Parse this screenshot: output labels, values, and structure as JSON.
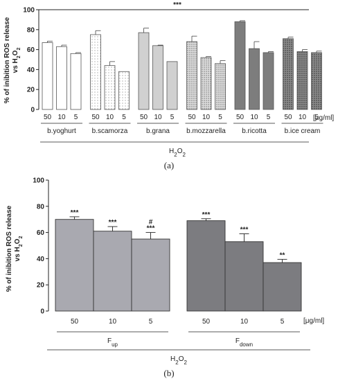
{
  "chart_data": [
    {
      "type": "bar",
      "panel_label": "(a)",
      "ylabel_main": "% of inibition ROS release",
      "ylabel_vs": "vs H",
      "ylabel_sub": "2",
      "ylabel_tail": "O",
      "ylabel_sub2": "2",
      "ylim": [
        0,
        100
      ],
      "yticks": [
        0,
        20,
        40,
        60,
        80,
        100
      ],
      "overall_significance": "***",
      "unit_label": "[μg/ml]",
      "group_axis_main": "H",
      "group_axis_sub": "2",
      "group_axis_tail": "O",
      "group_axis_sub2": "2",
      "groups": [
        {
          "name": "b.yoghurt",
          "pattern": "white",
          "doses": [
            "50",
            "10",
            "5"
          ],
          "values": [
            67,
            63,
            56
          ],
          "errors": [
            1.5,
            1.5,
            1
          ]
        },
        {
          "name": "b.scamorza",
          "pattern": "dots-light",
          "doses": [
            "50",
            "10",
            "5"
          ],
          "values": [
            75,
            44,
            38
          ],
          "errors": [
            4,
            4,
            0
          ]
        },
        {
          "name": "b.grana",
          "pattern": "lightgray",
          "doses": [
            "50",
            "10",
            "5"
          ],
          "values": [
            77,
            64,
            48
          ],
          "errors": [
            4.5,
            0.5,
            0
          ]
        },
        {
          "name": "b.mozzarella",
          "pattern": "dots-dense",
          "doses": [
            "50",
            "10",
            "5"
          ],
          "values": [
            68,
            52,
            46
          ],
          "errors": [
            5.5,
            1,
            3
          ]
        },
        {
          "name": "b.ricotta",
          "pattern": "darkgray",
          "doses": [
            "50",
            "10",
            "5"
          ],
          "values": [
            88,
            61,
            57
          ],
          "errors": [
            1,
            7,
            1
          ]
        },
        {
          "name": "b.ice cream",
          "pattern": "dots-dark",
          "doses": [
            "50",
            "10",
            "5"
          ],
          "values": [
            71,
            58,
            57
          ],
          "errors": [
            1.5,
            2,
            1.5
          ]
        }
      ]
    },
    {
      "type": "bar",
      "panel_label": "(b)",
      "ylabel_main": "% of inibition ROS release",
      "ylabel_vs": "vs H",
      "ylabel_sub": "2",
      "ylabel_tail": "O",
      "ylabel_sub2": "2",
      "ylim": [
        0,
        100
      ],
      "yticks": [
        0,
        20,
        40,
        60,
        80,
        100
      ],
      "unit_label": "[μg/ml]",
      "group_axis_main": "H",
      "group_axis_sub": "2",
      "group_axis_tail": "O",
      "group_axis_sub2": "2",
      "groups": [
        {
          "name_main": "F",
          "name_sub": "up",
          "color": "#a9a9b0",
          "doses": [
            "50",
            "10",
            "5"
          ],
          "values": [
            70,
            61,
            55
          ],
          "errors": [
            2,
            3.5,
            5
          ],
          "sig": [
            "***",
            "***",
            "***"
          ],
          "sig_extra": [
            "",
            "",
            "#"
          ]
        },
        {
          "name_main": "F",
          "name_sub": "down",
          "color": "#7c7c80",
          "doses": [
            "50",
            "10",
            "5"
          ],
          "values": [
            69,
            53,
            37
          ],
          "errors": [
            1.5,
            6,
            2.5
          ],
          "sig": [
            "***",
            "***",
            "**"
          ],
          "sig_extra": [
            "",
            "",
            ""
          ]
        }
      ]
    }
  ]
}
